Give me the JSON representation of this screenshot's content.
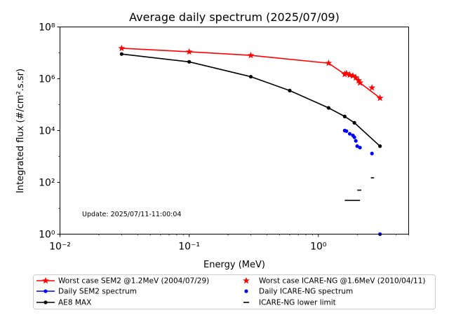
{
  "chart_data": {
    "type": "scatter",
    "title": "Average daily spectrum (2025/07/09)",
    "xlabel": "Energy (MeV)",
    "ylabel": "Integrated flux (#/cm².s.sr)",
    "x_scale": "log",
    "y_scale": "log",
    "xlim": [
      0.01,
      5
    ],
    "ylim": [
      1,
      100000000
    ],
    "x_ticks": [
      {
        "value": 0.01,
        "label": "10⁻²"
      },
      {
        "value": 0.1,
        "label": "10⁻¹"
      },
      {
        "value": 1,
        "label": "10⁰"
      }
    ],
    "y_ticks": [
      {
        "value": 1,
        "label": "10⁰"
      },
      {
        "value": 100,
        "label": "10²"
      },
      {
        "value": 10000,
        "label": "10⁴"
      },
      {
        "value": 1000000,
        "label": "10⁶"
      },
      {
        "value": 100000000,
        "label": "10⁸"
      }
    ],
    "grid": false,
    "legend_position": "bottom",
    "annotation": "Update: 2025/07/11-11:00:04",
    "series": [
      {
        "name": "Worst case SEM2 @1.2MeV (2004/07/29)",
        "kind": "line",
        "color": "#ff0000",
        "marker": "star",
        "x": [
          0.03,
          0.1,
          0.3,
          1.2,
          1.6,
          1.65,
          1.75,
          1.85,
          1.95,
          2.05,
          2.1,
          3.0
        ],
        "y": [
          15000000,
          11000000,
          8000000,
          4000000,
          1500000,
          1600000,
          1400000,
          1300000,
          1100000,
          850000,
          700000,
          180000
        ]
      },
      {
        "name": "Worst case ICARE-NG @1.6MeV (2010/04/11)",
        "kind": "scatter",
        "color": "#ff0000",
        "marker": "star",
        "x": [
          1.6,
          1.65,
          1.75,
          1.85,
          1.95,
          2.05,
          2.1,
          2.6,
          3.0
        ],
        "y": [
          1500000,
          1600000,
          1400000,
          1300000,
          1100000,
          850000,
          700000,
          450000,
          180000
        ]
      },
      {
        "name": "Daily SEM2 spectrum",
        "kind": "line",
        "color": "#0000ff",
        "marker": "dot",
        "x": [
          3.0
        ],
        "y": [
          1
        ]
      },
      {
        "name": "Daily ICARE-NG spectrum",
        "kind": "scatter",
        "color": "#0000ff",
        "marker": "dot",
        "x": [
          1.6,
          1.65,
          1.75,
          1.85,
          1.9,
          1.95,
          2.0,
          2.1,
          2.6
        ],
        "y": [
          10000,
          9500,
          7500,
          6500,
          5500,
          4000,
          2500,
          2200,
          1300
        ]
      },
      {
        "name": "AE8 MAX",
        "kind": "line",
        "color": "#000000",
        "marker": "dot",
        "x": [
          0.03,
          0.1,
          0.3,
          0.6,
          1.2,
          1.6,
          1.9,
          3.0
        ],
        "y": [
          9000000,
          4500000,
          1200000,
          350000,
          75000,
          35000,
          20000,
          2500
        ]
      },
      {
        "name": "ICARE-NG lower limit",
        "kind": "hlines",
        "color": "#000000",
        "marker": "dash",
        "segments": [
          {
            "x1": 1.6,
            "x2": 2.1,
            "y": 20
          },
          {
            "x1": 2.0,
            "x2": 2.15,
            "y": 50
          },
          {
            "x1": 2.55,
            "x2": 2.7,
            "y": 150
          }
        ]
      }
    ],
    "legend": {
      "items": [
        {
          "label": "Worst case SEM2 @1.2MeV (2004/07/29)",
          "color": "#ff0000",
          "line": true,
          "marker": "star"
        },
        {
          "label": "Worst case ICARE-NG @1.6MeV (2010/04/11)",
          "color": "#ff0000",
          "line": false,
          "marker": "star"
        },
        {
          "label": "Daily SEM2 spectrum",
          "color": "#0000ff",
          "line": true,
          "marker": "dot"
        },
        {
          "label": "Daily ICARE-NG spectrum",
          "color": "#0000ff",
          "line": false,
          "marker": "dot"
        },
        {
          "label": "AE8 MAX",
          "color": "#000000",
          "line": true,
          "marker": "dot"
        },
        {
          "label": "ICARE-NG lower limit",
          "color": "#000000",
          "line": false,
          "marker": "dash"
        }
      ]
    }
  }
}
